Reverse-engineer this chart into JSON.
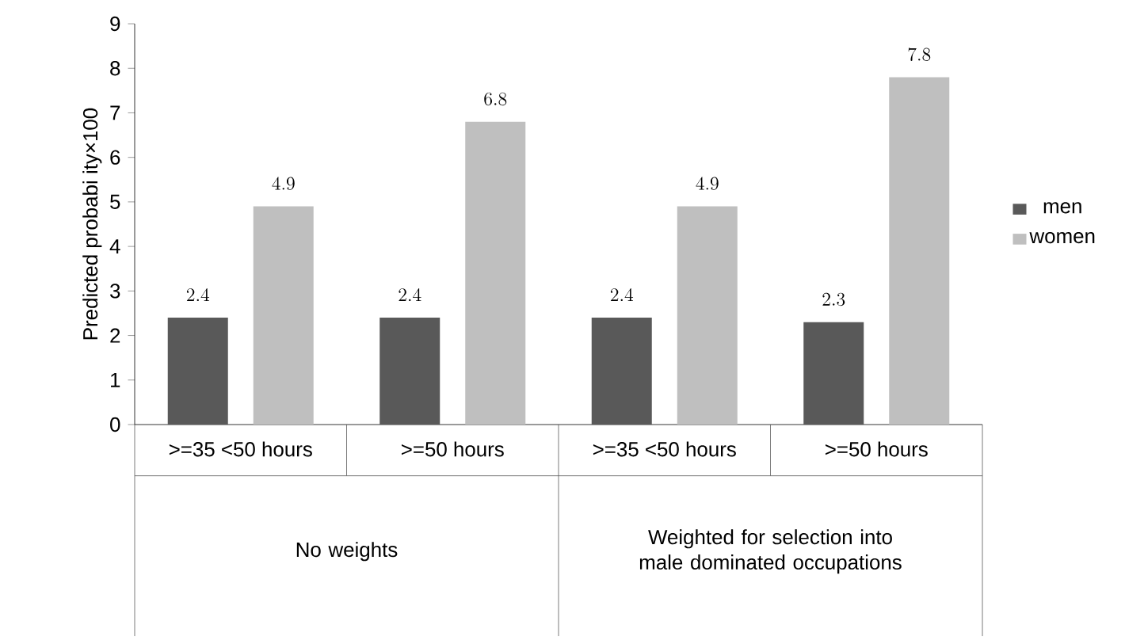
{
  "chart_data": {
    "type": "bar",
    "ylabel": "Predicted probabi ity×100",
    "categories": [
      ">=35 <50 hours",
      ">=50 hours",
      ">=35 <50 hours",
      ">=50 hours"
    ],
    "series": [
      {
        "name": "men",
        "color": "#595959",
        "values": [
          2.4,
          2.4,
          2.4,
          2.3
        ]
      },
      {
        "name": "women",
        "color": "#bfbfbf",
        "values": [
          4.9,
          6.8,
          4.9,
          7.8
        ]
      }
    ],
    "ylim": [
      0,
      9
    ],
    "yticks": [
      0,
      1,
      2,
      3,
      4,
      5,
      6,
      7,
      8,
      9
    ],
    "data_labels": true,
    "legend": "right",
    "annotations": [
      "No weights",
      "Weighted for selection into male dominated occupations"
    ]
  }
}
